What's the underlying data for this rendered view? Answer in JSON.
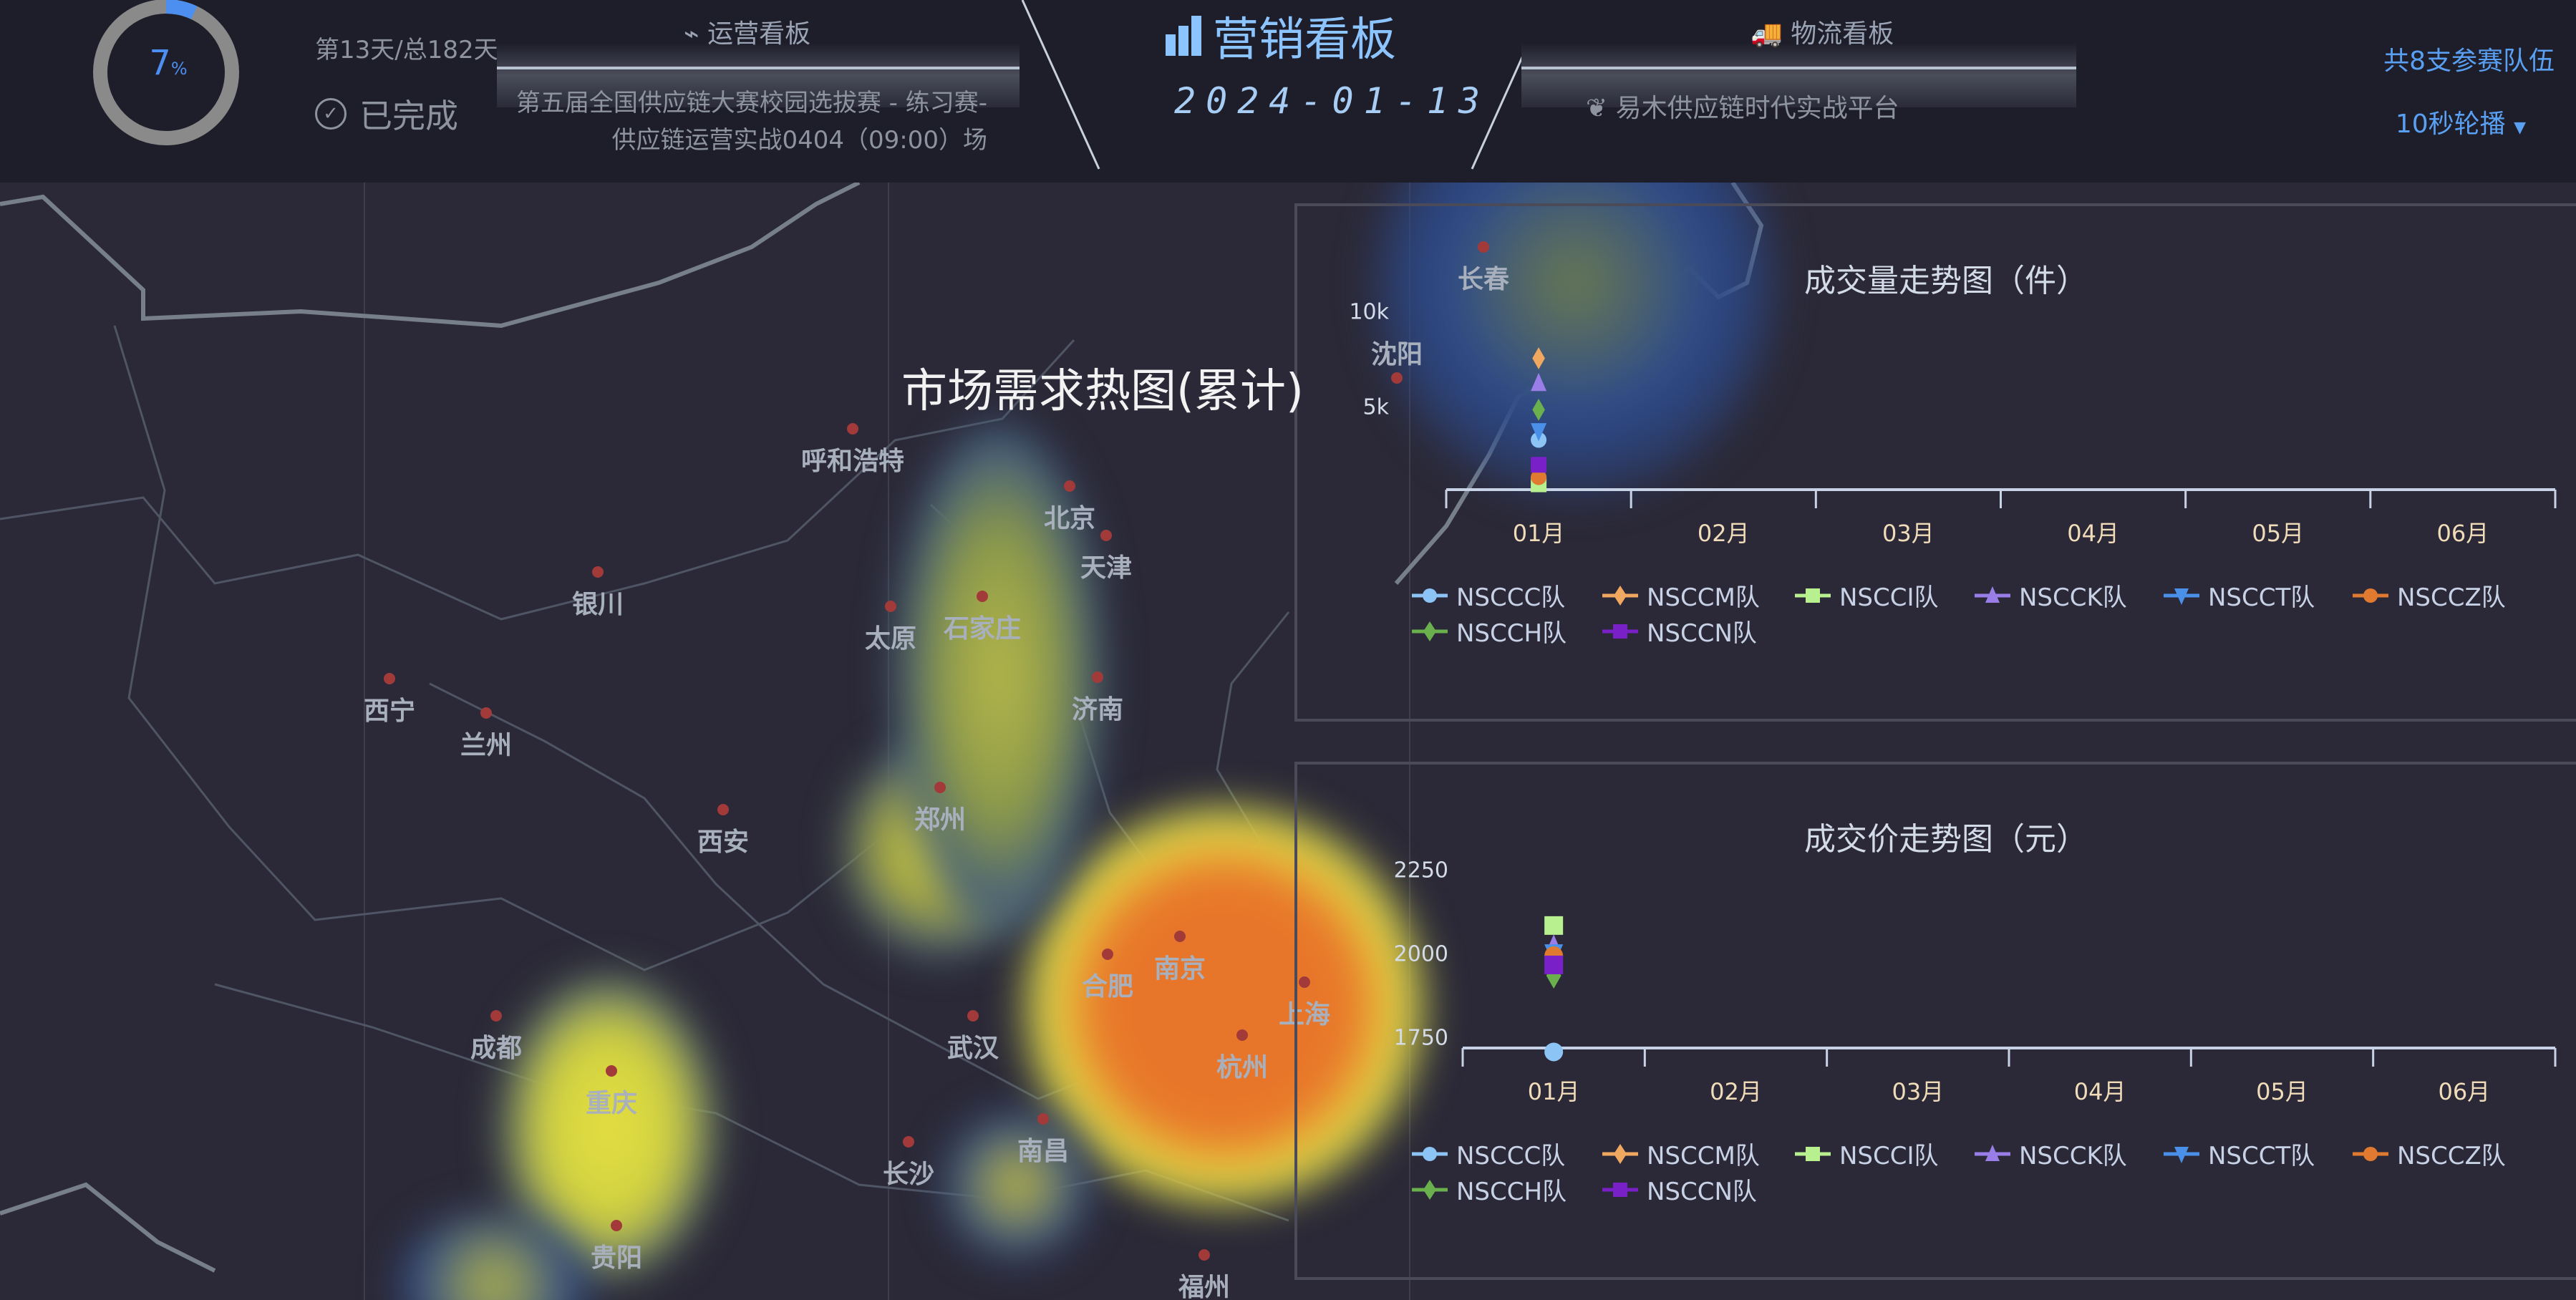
{
  "header": {
    "progress_percent": 7,
    "progress_label": "7",
    "progress_unit": "%",
    "day_text": "第13天/总182天",
    "status": "已完成",
    "left_tab": "运营看板",
    "competition_line1": "第五届全国供应链大赛校园选拔赛 - 练习赛-",
    "competition_line2": "供应链运营实战0404（09:00）场",
    "title": "营销看板",
    "date": "2024-01-13",
    "right_tab": "物流看板",
    "platform": "易木供应链时代实战平台",
    "team_count": "共8支参赛队伍",
    "carousel": "10秒轮播",
    "colors": {
      "accent": "#5aa0f2",
      "title": "#8cc4ff",
      "ring": "#8a8a8a"
    }
  },
  "map": {
    "title": "市场需求热图(累计)",
    "cities": [
      {
        "name": "长春"
      },
      {
        "name": "沈阳"
      },
      {
        "name": "呼和浩特"
      },
      {
        "name": "北京"
      },
      {
        "name": "天津"
      },
      {
        "name": "银川"
      },
      {
        "name": "石家庄"
      },
      {
        "name": "太原"
      },
      {
        "name": "西宁"
      },
      {
        "name": "兰州"
      },
      {
        "name": "济南"
      },
      {
        "name": "郑州"
      },
      {
        "name": "西安"
      },
      {
        "name": "合肥"
      },
      {
        "name": "南京"
      },
      {
        "name": "上海"
      },
      {
        "name": "成都"
      },
      {
        "name": "杭州"
      },
      {
        "name": "武汉"
      },
      {
        "name": "重庆"
      },
      {
        "name": "南昌"
      },
      {
        "name": "长沙"
      },
      {
        "name": "贵阳"
      },
      {
        "name": "福州"
      }
    ],
    "heat_colors": [
      "#2d4a8a",
      "#e6e042",
      "#e8762a"
    ]
  },
  "chart_data": [
    {
      "type": "scatter",
      "title": "成交量走势图（件）",
      "categories": [
        "01月",
        "02月",
        "03月",
        "04月",
        "05月",
        "06月"
      ],
      "y_ticks": [
        "10k",
        "5k"
      ],
      "ylim": [
        0,
        10000
      ],
      "legend_position": "bottom",
      "series": [
        {
          "name": "NSCCC队",
          "symbol": "circle",
          "color": "#8cc4f5",
          "values": [
            2800
          ]
        },
        {
          "name": "NSCCM队",
          "symbol": "diamond",
          "color": "#f0a860",
          "values": [
            7400
          ]
        },
        {
          "name": "NSCCI队",
          "symbol": "rect",
          "color": "#b8f090",
          "values": [
            300
          ]
        },
        {
          "name": "NSCCK队",
          "symbol": "triangle",
          "color": "#9a7ee8",
          "values": [
            6000
          ]
        },
        {
          "name": "NSCCT队",
          "symbol": "triangle-down",
          "color": "#4a90e8",
          "values": [
            3300
          ]
        },
        {
          "name": "NSCCZ队",
          "symbol": "circle",
          "color": "#e07a30",
          "values": [
            700
          ]
        },
        {
          "name": "NSCCH队",
          "symbol": "diamond",
          "color": "#6ab04c",
          "values": [
            4500
          ]
        },
        {
          "name": "NSCCN队",
          "symbol": "rect",
          "color": "#7a20c8",
          "values": [
            1400
          ]
        }
      ]
    },
    {
      "type": "scatter",
      "title": "成交价走势图（元）",
      "categories": [
        "01月",
        "02月",
        "03月",
        "04月",
        "05月",
        "06月"
      ],
      "y_ticks": [
        "2250",
        "2000",
        "1750"
      ],
      "ylim": [
        1750,
        2250
      ],
      "legend_position": "bottom",
      "series": [
        {
          "name": "NSCCC队",
          "symbol": "circle",
          "color": "#8cc4f5",
          "values": [
            1739
          ]
        },
        {
          "name": "NSCCM队",
          "symbol": "diamond",
          "color": "#f0a860",
          "values": [
            2010
          ]
        },
        {
          "name": "NSCCI队",
          "symbol": "rect",
          "color": "#b8f090",
          "values": [
            2095
          ]
        },
        {
          "name": "NSCCK队",
          "symbol": "triangle",
          "color": "#9a7ee8",
          "values": [
            2036
          ]
        },
        {
          "name": "NSCCT队",
          "symbol": "triangle-down",
          "color": "#4a90e8",
          "values": [
            2016
          ]
        },
        {
          "name": "NSCCZ队",
          "symbol": "circle",
          "color": "#e07a30",
          "values": [
            2010
          ]
        },
        {
          "name": "NSCCH队",
          "symbol": "diamond",
          "color": "#6ab04c",
          "values": [
            1954
          ]
        },
        {
          "name": "NSCCN队",
          "symbol": "rect",
          "color": "#7a20c8",
          "values": [
            1984
          ]
        }
      ]
    }
  ]
}
